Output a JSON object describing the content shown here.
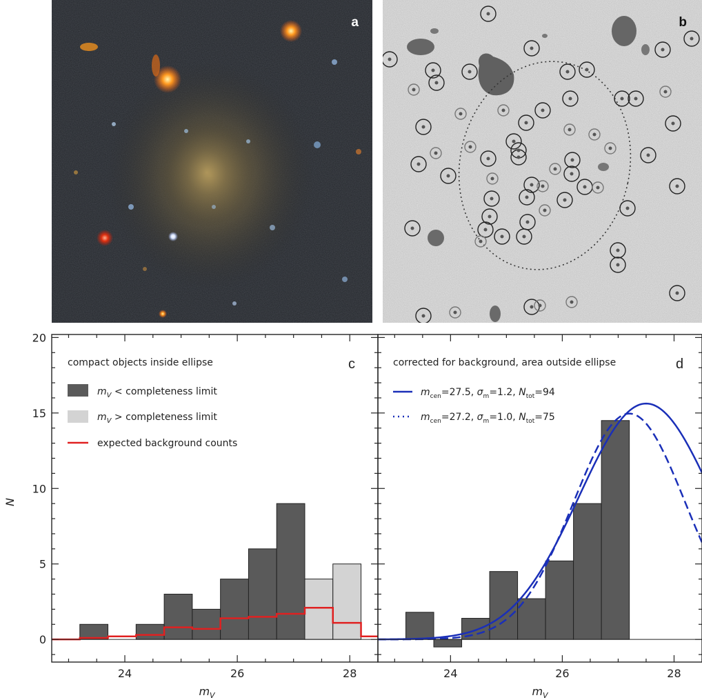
{
  "panels": {
    "a": {
      "letter": "a"
    },
    "b": {
      "letter": "b"
    },
    "c": {
      "letter": "c"
    },
    "d": {
      "letter": "d"
    }
  },
  "chart_data": [
    {
      "panel": "c",
      "type": "bar",
      "title": "compact objects inside ellipse",
      "xlabel": "m_V",
      "ylabel": "N",
      "xlim": [
        22.7,
        28.5
      ],
      "ylim": [
        -1.5,
        20.2
      ],
      "xticks": [
        24,
        26,
        28
      ],
      "yticks": [
        0,
        5,
        10,
        15,
        20
      ],
      "bin_width": 0.5,
      "legend": {
        "dark": {
          "sym": "m",
          "sub": "V",
          "text": " < completeness limit",
          "color": "#5a5a5a"
        },
        "light": {
          "sym": "m",
          "sub": "V",
          "text": " > completeness limit",
          "color": "#d3d3d3"
        },
        "red": {
          "text": "expected background counts",
          "color": "#e02020"
        }
      },
      "series": [
        {
          "name": "m_V < completeness limit",
          "color": "#5a5a5a",
          "bin_edges_left": [
            23.2,
            24.2,
            24.7,
            25.2,
            25.7,
            26.2,
            26.7
          ],
          "values": [
            1,
            1,
            3,
            2,
            4,
            6,
            9
          ]
        },
        {
          "name": "m_V > completeness limit",
          "color": "#d3d3d3",
          "bin_edges_left": [
            27.2,
            27.7
          ],
          "values": [
            4,
            5
          ]
        }
      ],
      "background_step": {
        "name": "expected background counts",
        "color": "#e02020",
        "edges": [
          22.7,
          23.2,
          23.7,
          24.2,
          24.7,
          25.2,
          25.7,
          26.2,
          26.7,
          27.2,
          27.7,
          28.2,
          28.5
        ],
        "values": [
          0.0,
          0.1,
          0.2,
          0.3,
          0.8,
          0.7,
          1.4,
          1.5,
          1.7,
          2.1,
          1.1,
          0.2,
          0.2
        ]
      }
    },
    {
      "panel": "d",
      "type": "bar",
      "title": "corrected for background, area outside ellipse",
      "xlabel": "m_V",
      "xlim": [
        22.7,
        28.5
      ],
      "ylim": [
        -1.5,
        20.2
      ],
      "xticks": [
        24,
        26,
        28
      ],
      "yticks": [
        0,
        5,
        10,
        15,
        20
      ],
      "bin_width": 0.5,
      "series": [
        {
          "name": "corrected counts",
          "color": "#5a5a5a",
          "bin_edges_left": [
            23.2,
            23.7,
            24.2,
            24.7,
            25.2,
            25.7,
            26.2,
            26.7
          ],
          "values": [
            1.8,
            -0.5,
            1.4,
            4.5,
            2.7,
            5.2,
            9.0,
            14.5
          ]
        }
      ],
      "fits": [
        {
          "m_cen": 27.5,
          "sigma_m": 1.2,
          "N_tot": 94,
          "style": "solid",
          "color": "#1a2fb8",
          "label": {
            "a": "=27.5, ",
            "b": "=1.2, ",
            "c": "=94"
          }
        },
        {
          "m_cen": 27.2,
          "sigma_m": 1.0,
          "N_tot": 75,
          "style": "dashed",
          "color": "#1a2fb8",
          "label": {
            "a": "=27.2, ",
            "b": "=1.0, ",
            "c": "=75"
          }
        }
      ],
      "legend_sym": {
        "m": "m",
        "cen": "cen",
        "sigma": "σ",
        "msub": "m",
        "N": "N",
        "tot": "tot"
      }
    }
  ]
}
